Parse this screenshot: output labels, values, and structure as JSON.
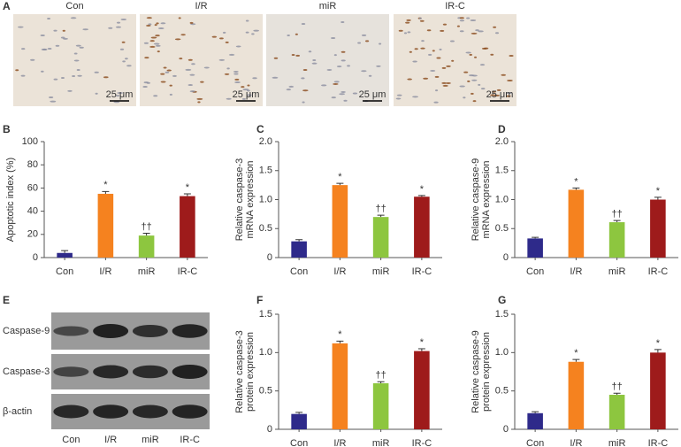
{
  "panel_letters": [
    "A",
    "B",
    "C",
    "D",
    "E",
    "F",
    "G"
  ],
  "micrographs": {
    "labels": [
      "Con",
      "I/R",
      "miR",
      "IR-C"
    ],
    "scale_bar": "25 μm"
  },
  "blot": {
    "rows": [
      "Caspase-9",
      "Caspase-3",
      "β-actin"
    ],
    "lanes": [
      "Con",
      "I/R",
      "miR",
      "IR-C"
    ]
  },
  "chart_data": [
    {
      "type": "bar",
      "y_label": [
        "Apoptotic index (%)"
      ],
      "categories": [
        "Con",
        "I/R",
        "miR",
        "IR-C"
      ],
      "values": [
        4,
        55,
        19,
        53
      ],
      "errors": [
        2,
        2,
        2,
        2
      ],
      "annotations": [
        null,
        "*",
        "††",
        "*"
      ],
      "colors": [
        "#2e2a8a",
        "#f5821f",
        "#8dc63f",
        "#9e1b1b"
      ],
      "ylim": [
        0,
        100
      ],
      "yticks": [
        0,
        20,
        40,
        60,
        80,
        100
      ]
    },
    {
      "type": "bar",
      "y_label": [
        "Relative caspase-3",
        "mRNA expression"
      ],
      "categories": [
        "Con",
        "I/R",
        "miR",
        "IR-C"
      ],
      "values": [
        0.28,
        1.25,
        0.7,
        1.05
      ],
      "errors": [
        0.03,
        0.03,
        0.03,
        0.02
      ],
      "annotations": [
        null,
        "*",
        "††",
        "*"
      ],
      "colors": [
        "#2e2a8a",
        "#f5821f",
        "#8dc63f",
        "#9e1b1b"
      ],
      "ylim": [
        0,
        2
      ],
      "yticks": [
        0,
        0.5,
        {
          "value": 1,
          "label": "1.0"
        },
        1.5,
        {
          "value": 2,
          "label": "2.0"
        }
      ]
    },
    {
      "type": "bar",
      "y_label": [
        "Relative caspase-9",
        "mRNA expression"
      ],
      "categories": [
        "Con",
        "I/R",
        "miR",
        "IR-C"
      ],
      "values": [
        0.33,
        1.17,
        0.61,
        1.0
      ],
      "errors": [
        0.02,
        0.03,
        0.03,
        0.04
      ],
      "annotations": [
        null,
        "*",
        "††",
        "*"
      ],
      "colors": [
        "#2e2a8a",
        "#f5821f",
        "#8dc63f",
        "#9e1b1b"
      ],
      "ylim": [
        0,
        2
      ],
      "yticks": [
        0,
        0.5,
        {
          "value": 1,
          "label": "1.0"
        },
        1.5,
        {
          "value": 2,
          "label": "2.0"
        }
      ]
    },
    {
      "type": "bar",
      "y_label": [
        "Relative caspase-3",
        "protein expression"
      ],
      "categories": [
        "Con",
        "I/R",
        "miR",
        "IR-C"
      ],
      "values": [
        0.2,
        1.12,
        0.6,
        1.02
      ],
      "errors": [
        0.02,
        0.03,
        0.02,
        0.03
      ],
      "annotations": [
        null,
        "*",
        "††",
        "*"
      ],
      "colors": [
        "#2e2a8a",
        "#f5821f",
        "#8dc63f",
        "#9e1b1b"
      ],
      "ylim": [
        0,
        1.5
      ],
      "yticks": [
        0,
        0.5,
        {
          "value": 1,
          "label": "1.0"
        },
        1.5
      ]
    },
    {
      "type": "bar",
      "y_label": [
        "Relative caspase-9",
        "protein expression"
      ],
      "categories": [
        "Con",
        "I/R",
        "miR",
        "IR-C"
      ],
      "values": [
        0.21,
        0.88,
        0.45,
        1.0
      ],
      "errors": [
        0.02,
        0.03,
        0.02,
        0.04
      ],
      "annotations": [
        null,
        "*",
        "††",
        "*"
      ],
      "colors": [
        "#2e2a8a",
        "#f5821f",
        "#8dc63f",
        "#9e1b1b"
      ],
      "ylim": [
        0,
        1.5
      ],
      "yticks": [
        0,
        0.5,
        {
          "value": 1,
          "label": "1.0"
        },
        1.5
      ]
    }
  ]
}
